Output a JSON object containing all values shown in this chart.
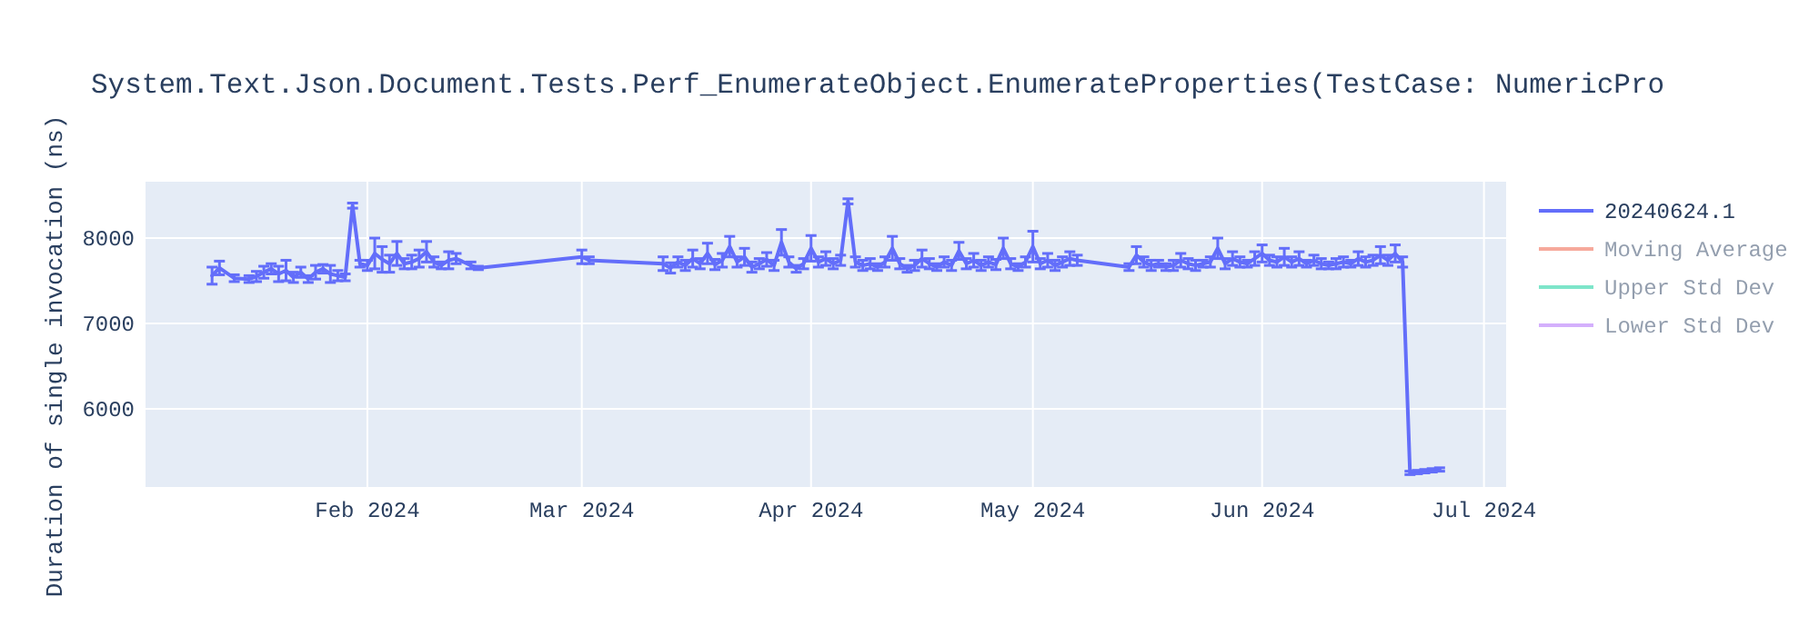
{
  "chart_data": {
    "type": "line",
    "title": "System.Text.Json.Document.Tests.Perf_EnumerateObject.EnumerateProperties(TestCase: NumericPro",
    "ylabel": "Duration of single invocation (ns)",
    "xlim": [
      "2024-01-02",
      "2024-07-04"
    ],
    "ylim": [
      5085,
      8660
    ],
    "xticks": [
      {
        "value": "2024-02-01",
        "label": "Feb 2024"
      },
      {
        "value": "2024-03-01",
        "label": "Mar 2024"
      },
      {
        "value": "2024-04-01",
        "label": "Apr 2024"
      },
      {
        "value": "2024-05-01",
        "label": "May 2024"
      },
      {
        "value": "2024-06-01",
        "label": "Jun 2024"
      },
      {
        "value": "2024-07-01",
        "label": "Jul 2024"
      }
    ],
    "yticks": [
      6000,
      7000,
      8000
    ],
    "grid": true,
    "legend": "top right",
    "series": [
      {
        "name": "20240624.1",
        "color": "#636efa",
        "x": [
          "2024-01-11",
          "2024-01-12",
          "2024-01-14",
          "2024-01-16",
          "2024-01-17",
          "2024-01-18",
          "2024-01-19",
          "2024-01-20",
          "2024-01-21",
          "2024-01-22",
          "2024-01-23",
          "2024-01-24",
          "2024-01-25",
          "2024-01-26",
          "2024-01-27",
          "2024-01-28",
          "2024-01-29",
          "2024-01-30",
          "2024-01-31",
          "2024-02-01",
          "2024-02-02",
          "2024-02-03",
          "2024-02-04",
          "2024-02-05",
          "2024-02-06",
          "2024-02-07",
          "2024-02-08",
          "2024-02-09",
          "2024-02-10",
          "2024-02-11",
          "2024-02-12",
          "2024-02-13",
          "2024-02-15",
          "2024-02-16",
          "2024-03-01",
          "2024-03-02",
          "2024-03-12",
          "2024-03-13",
          "2024-03-14",
          "2024-03-15",
          "2024-03-16",
          "2024-03-17",
          "2024-03-18",
          "2024-03-19",
          "2024-03-20",
          "2024-03-21",
          "2024-03-22",
          "2024-03-23",
          "2024-03-24",
          "2024-03-25",
          "2024-03-26",
          "2024-03-27",
          "2024-03-28",
          "2024-03-29",
          "2024-03-30",
          "2024-03-31",
          "2024-04-01",
          "2024-04-02",
          "2024-04-03",
          "2024-04-04",
          "2024-04-05",
          "2024-04-06",
          "2024-04-07",
          "2024-04-08",
          "2024-04-09",
          "2024-04-10",
          "2024-04-11",
          "2024-04-12",
          "2024-04-13",
          "2024-04-14",
          "2024-04-15",
          "2024-04-16",
          "2024-04-17",
          "2024-04-18",
          "2024-04-19",
          "2024-04-20",
          "2024-04-21",
          "2024-04-22",
          "2024-04-23",
          "2024-04-24",
          "2024-04-25",
          "2024-04-26",
          "2024-04-27",
          "2024-04-28",
          "2024-04-29",
          "2024-04-30",
          "2024-05-01",
          "2024-05-02",
          "2024-05-03",
          "2024-05-04",
          "2024-05-05",
          "2024-05-06",
          "2024-05-07",
          "2024-05-14",
          "2024-05-15",
          "2024-05-16",
          "2024-05-17",
          "2024-05-18",
          "2024-05-19",
          "2024-05-20",
          "2024-05-21",
          "2024-05-22",
          "2024-05-23",
          "2024-05-24",
          "2024-05-25",
          "2024-05-26",
          "2024-05-27",
          "2024-05-28",
          "2024-05-29",
          "2024-05-30",
          "2024-05-31",
          "2024-06-01",
          "2024-06-02",
          "2024-06-03",
          "2024-06-04",
          "2024-06-05",
          "2024-06-06",
          "2024-06-07",
          "2024-06-08",
          "2024-06-09",
          "2024-06-10",
          "2024-06-11",
          "2024-06-12",
          "2024-06-13",
          "2024-06-14",
          "2024-06-15",
          "2024-06-16",
          "2024-06-17",
          "2024-06-18",
          "2024-06-19",
          "2024-06-20",
          "2024-06-21",
          "2024-06-22",
          "2024-06-23",
          "2024-06-24",
          "2024-06-25"
        ],
        "values": [
          7560,
          7650,
          7530,
          7520,
          7550,
          7600,
          7640,
          7580,
          7620,
          7540,
          7600,
          7520,
          7600,
          7640,
          7580,
          7560,
          7540,
          8380,
          7700,
          7680,
          7820,
          7750,
          7700,
          7820,
          7700,
          7720,
          7760,
          7840,
          7720,
          7680,
          7740,
          7760,
          7680,
          7650,
          7780,
          7740,
          7700,
          7650,
          7720,
          7680,
          7760,
          7700,
          7820,
          7690,
          7740,
          7900,
          7720,
          7780,
          7660,
          7700,
          7750,
          7680,
          7950,
          7720,
          7640,
          7700,
          7880,
          7720,
          7760,
          7700,
          7740,
          8430,
          7720,
          7680,
          7700,
          7660,
          7720,
          7880,
          7700,
          7640,
          7680,
          7760,
          7700,
          7660,
          7720,
          7680,
          7850,
          7700,
          7740,
          7680,
          7720,
          7690,
          7880,
          7700,
          7660,
          7720,
          7900,
          7700,
          7740,
          7680,
          7720,
          7760,
          7740,
          7660,
          7800,
          7720,
          7680,
          7700,
          7660,
          7680,
          7740,
          7700,
          7680,
          7700,
          7720,
          7880,
          7700,
          7760,
          7720,
          7700,
          7760,
          7820,
          7740,
          7720,
          7780,
          7720,
          7760,
          7700,
          7740,
          7700,
          7680,
          7700,
          7720,
          7700,
          7760,
          7720,
          7740,
          7800,
          7740,
          7820,
          7720,
          5250,
          5260,
          5270,
          5280,
          5290
        ],
        "errors": [
          100,
          80,
          40,
          40,
          60,
          70,
          60,
          90,
          120,
          60,
          60,
          40,
          80,
          50,
          100,
          60,
          40,
          30,
          40,
          60,
          180,
          150,
          100,
          140,
          60,
          80,
          100,
          120,
          60,
          40,
          100,
          60,
          40,
          20,
          80,
          40,
          80,
          60,
          60,
          60,
          100,
          60,
          120,
          60,
          80,
          120,
          60,
          100,
          60,
          60,
          80,
          60,
          150,
          60,
          40,
          60,
          150,
          60,
          80,
          60,
          60,
          30,
          60,
          60,
          60,
          40,
          60,
          140,
          60,
          40,
          60,
          100,
          60,
          40,
          60,
          60,
          100,
          60,
          80,
          60,
          60,
          60,
          120,
          60,
          40,
          60,
          180,
          60,
          80,
          60,
          60,
          80,
          60,
          40,
          100,
          60,
          60,
          40,
          40,
          60,
          80,
          60,
          60,
          40,
          60,
          120,
          60,
          80,
          60,
          40,
          80,
          100,
          60,
          60,
          100,
          60,
          80,
          40,
          60,
          60,
          40,
          60,
          60,
          40,
          80,
          60,
          60,
          100,
          60,
          100,
          60,
          20,
          20,
          20,
          20,
          20
        ]
      },
      {
        "name": "Moving Average",
        "color": "#ef553b"
      },
      {
        "name": "Upper Std Dev",
        "color": "#00cc96"
      },
      {
        "name": "Lower Std Dev",
        "color": "#ab63fa"
      }
    ]
  }
}
